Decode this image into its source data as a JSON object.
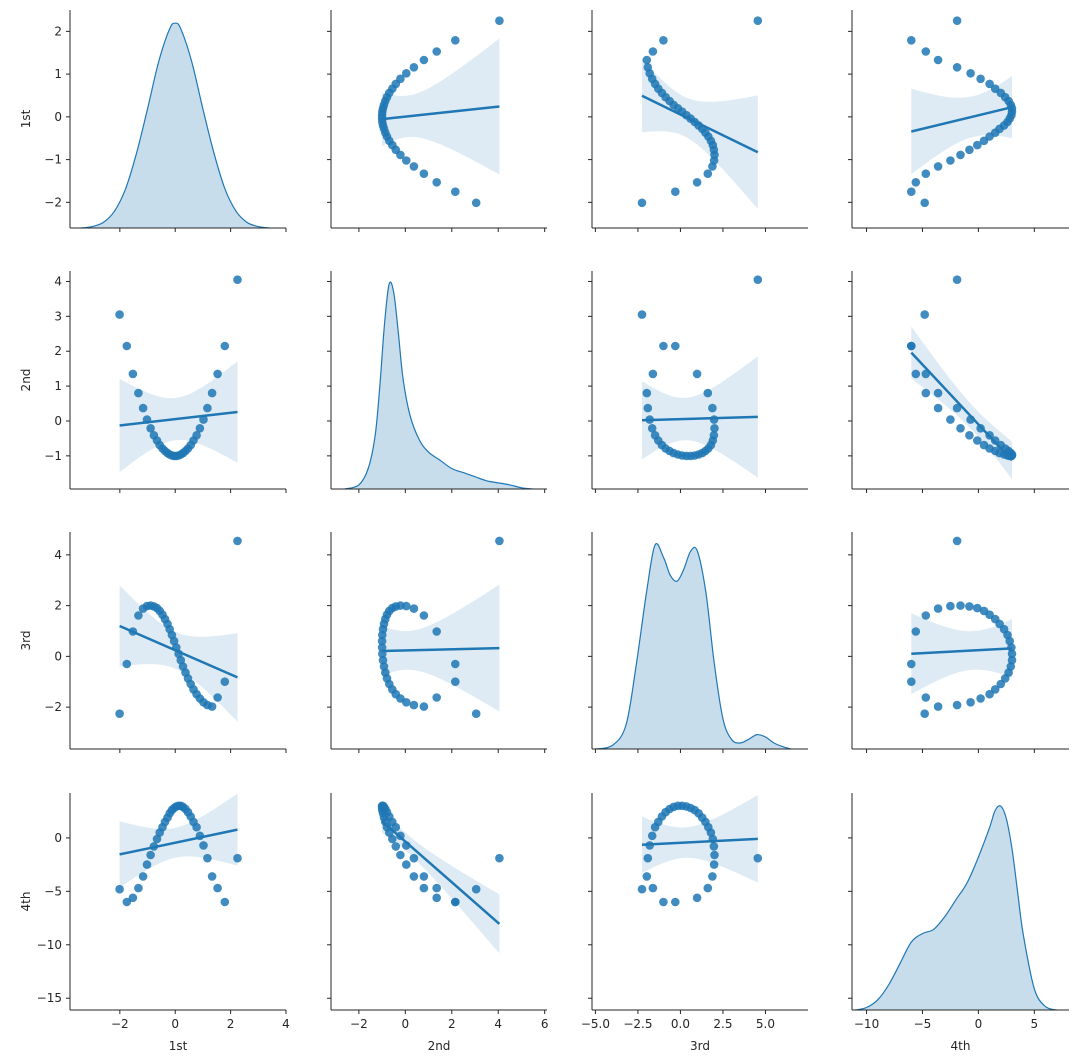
{
  "variables": [
    "1st",
    "2nd",
    "3rd",
    "4th"
  ],
  "colors": {
    "main": "#1f77b4",
    "band": "#1f77b4",
    "axis": "#262626"
  },
  "chart_data": {
    "type": "scatter",
    "layout": "pairplot",
    "kind": "reg with KDE diagonal",
    "variables": [
      "1st",
      "2nd",
      "3rd",
      "4th"
    ],
    "axes": {
      "1st": {
        "lim": [
          -3.8,
          4.0
        ],
        "xticks": [
          -2,
          0,
          2,
          4
        ],
        "xlim": [
          -3.8,
          4.0
        ],
        "ylim": [
          -2.6,
          2.5
        ],
        "yticks": [
          -2,
          -1,
          0,
          1,
          2
        ]
      },
      "2nd": {
        "xlim": [
          -3.2,
          6.1
        ],
        "xticks": [
          -2,
          0,
          2,
          4,
          6
        ],
        "ylim": [
          -1.95,
          4.3
        ],
        "yticks": [
          -1,
          0,
          1,
          2,
          3,
          4
        ]
      },
      "3rd": {
        "xlim": [
          -5.2,
          7.5
        ],
        "xticks": [
          -5.0,
          -2.5,
          0.0,
          2.5,
          5.0
        ],
        "ylim": [
          -3.65,
          4.9
        ],
        "yticks": [
          -2,
          0,
          2,
          4
        ]
      },
      "4th": {
        "xlim": [
          -11.3,
          8.1
        ],
        "xticks": [
          -10,
          -5,
          0,
          5
        ],
        "ylim": [
          -16.1,
          4.2
        ],
        "yticks": [
          -15,
          -10,
          -5,
          0
        ]
      }
    },
    "diagonal": {
      "type": "kde",
      "fill": true,
      "series": [
        {
          "name": "1st",
          "x": [
            -3.4,
            -3.0,
            -2.6,
            -2.2,
            -1.8,
            -1.4,
            -1.0,
            -0.6,
            -0.2,
            0.0,
            0.2,
            0.6,
            1.0,
            1.4,
            1.8,
            2.2,
            2.6,
            3.0,
            3.4
          ],
          "y": [
            0.0,
            0.005,
            0.02,
            0.06,
            0.14,
            0.27,
            0.43,
            0.6,
            0.72,
            0.74,
            0.72,
            0.6,
            0.43,
            0.27,
            0.14,
            0.06,
            0.02,
            0.005,
            0.0
          ]
        },
        {
          "name": "2nd",
          "x": [
            -2.6,
            -2.0,
            -1.6,
            -1.3,
            -1.1,
            -0.9,
            -0.7,
            -0.5,
            -0.3,
            -0.1,
            0.2,
            0.6,
            1.0,
            1.5,
            2.0,
            2.5,
            3.0,
            3.5,
            4.0,
            4.5,
            5.0,
            5.5
          ],
          "y": [
            0.0,
            0.01,
            0.05,
            0.13,
            0.25,
            0.4,
            0.5,
            0.48,
            0.38,
            0.27,
            0.18,
            0.12,
            0.09,
            0.07,
            0.05,
            0.04,
            0.03,
            0.02,
            0.015,
            0.01,
            0.003,
            0.0
          ]
        },
        {
          "name": "3rd",
          "x": [
            -5.0,
            -4.0,
            -3.2,
            -2.6,
            -2.0,
            -1.5,
            -1.0,
            -0.6,
            -0.2,
            0.2,
            0.6,
            1.0,
            1.5,
            2.0,
            2.5,
            3.0,
            3.5,
            4.0,
            4.5,
            5.0,
            5.5,
            6.0,
            6.5
          ],
          "y": [
            0.0,
            0.003,
            0.02,
            0.07,
            0.13,
            0.17,
            0.16,
            0.145,
            0.14,
            0.15,
            0.165,
            0.165,
            0.13,
            0.07,
            0.025,
            0.008,
            0.005,
            0.008,
            0.012,
            0.01,
            0.005,
            0.002,
            0.0
          ]
        },
        {
          "name": "4th",
          "x": [
            -11,
            -10,
            -9,
            -8,
            -7,
            -6,
            -5,
            -4,
            -3,
            -2,
            -1,
            0,
            1,
            1.5,
            2,
            2.5,
            3,
            3.5,
            4,
            5,
            6,
            7
          ],
          "y": [
            0.0,
            0.003,
            0.012,
            0.03,
            0.055,
            0.08,
            0.09,
            0.095,
            0.11,
            0.13,
            0.15,
            0.18,
            0.215,
            0.235,
            0.24,
            0.225,
            0.19,
            0.14,
            0.09,
            0.025,
            0.004,
            0.0
          ]
        }
      ]
    },
    "points": {
      "1st": [
        -2.01,
        -1.75,
        -1.53,
        -1.33,
        -1.16,
        -1.02,
        -0.89,
        -0.77,
        -0.66,
        -0.56,
        -0.46,
        -0.37,
        -0.28,
        -0.2,
        -0.12,
        -0.04,
        0.04,
        0.12,
        0.2,
        0.28,
        0.37,
        0.46,
        0.56,
        0.66,
        0.77,
        0.89,
        1.02,
        1.16,
        1.33,
        1.53,
        1.79,
        2.25
      ],
      "2nd": [
        3.05,
        2.15,
        1.35,
        0.8,
        0.37,
        0.04,
        -0.21,
        -0.41,
        -0.56,
        -0.69,
        -0.79,
        -0.86,
        -0.92,
        -0.96,
        -0.99,
        -1.0,
        -1.0,
        -0.99,
        -0.96,
        -0.92,
        -0.86,
        -0.79,
        -0.69,
        -0.56,
        -0.41,
        -0.21,
        0.04,
        0.37,
        0.8,
        1.35,
        2.15,
        4.05
      ],
      "3rd": [
        -2.26,
        -0.3,
        0.98,
        1.61,
        1.88,
        1.98,
        2.0,
        1.97,
        1.9,
        1.79,
        1.64,
        1.47,
        1.28,
        1.07,
        0.84,
        0.6,
        0.35,
        0.1,
        -0.15,
        -0.4,
        -0.64,
        -0.87,
        -1.09,
        -1.3,
        -1.49,
        -1.66,
        -1.81,
        -1.92,
        -1.98,
        -1.62,
        -1.0,
        4.55
      ],
      "4th": [
        -4.8,
        -6.0,
        -5.6,
        -4.7,
        -3.6,
        -2.5,
        -1.6,
        -0.8,
        -0.1,
        0.5,
        1.0,
        1.5,
        1.9,
        2.3,
        2.6,
        2.8,
        2.95,
        3.0,
        3.0,
        2.9,
        2.7,
        2.4,
        2.0,
        1.5,
        1.0,
        0.2,
        -0.7,
        -1.9,
        -3.6,
        -4.7,
        -6.0,
        -1.9
      ]
    }
  },
  "labels": {
    "x": [
      "1st",
      "2nd",
      "3rd",
      "4th"
    ],
    "y": [
      "1st",
      "2nd",
      "3rd",
      "4th"
    ]
  }
}
